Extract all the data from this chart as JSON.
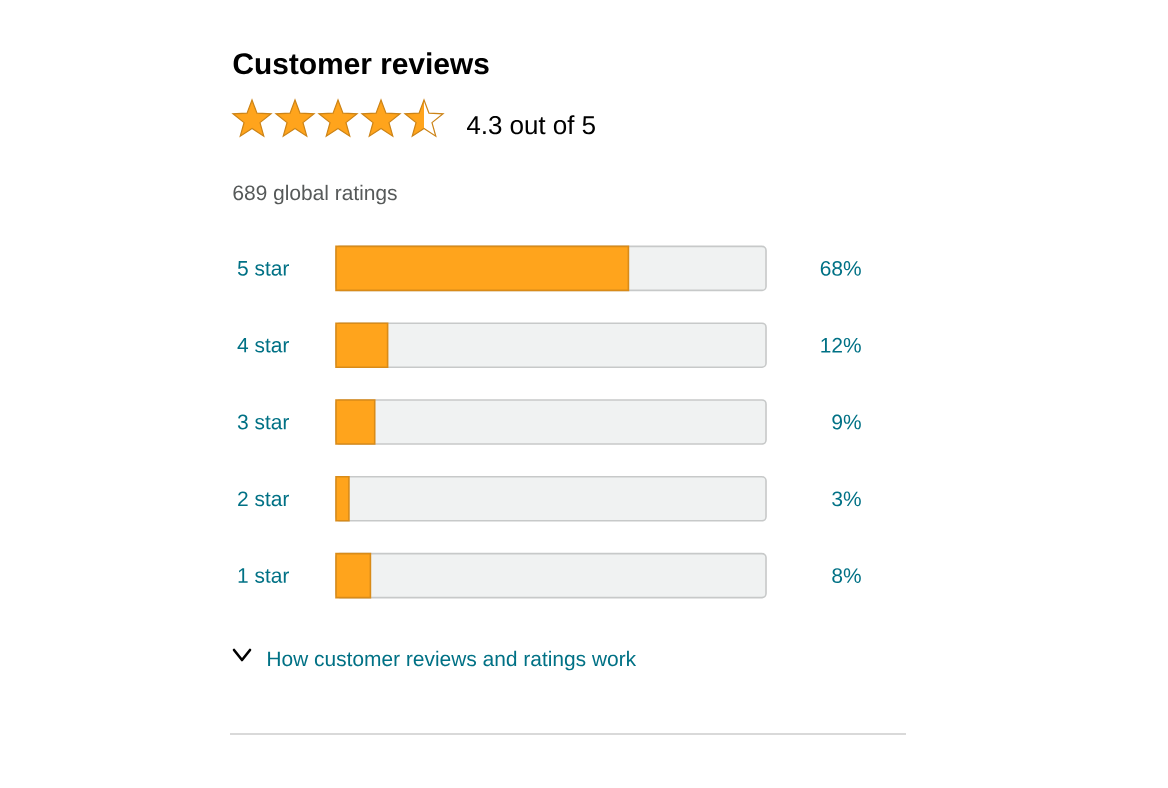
{
  "chart_data": {
    "type": "bar",
    "orientation": "horizontal",
    "title": "Customer reviews",
    "subtitle": "4.3 out of 5",
    "annotations": [
      "689 global ratings",
      "How customer reviews and ratings work"
    ],
    "categories": [
      "5 star",
      "4 star",
      "3 star",
      "2 star",
      "1 star"
    ],
    "values": [
      68,
      12,
      9,
      3,
      8
    ],
    "value_labels": [
      "68%",
      "12%",
      "9%",
      "3%",
      "8%"
    ],
    "color": "#ffa41c",
    "xlim": [
      0,
      100
    ],
    "tick_labels": "y"
  }
}
